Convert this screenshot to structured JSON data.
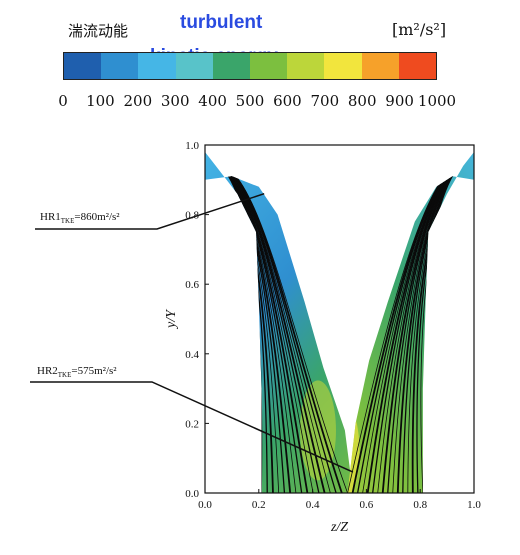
{
  "colorbar": {
    "title_cn": "湍流动能",
    "title_en_line1": "turbulent",
    "title_en_line2": "kinetic energy",
    "unit": "[m²/s²]",
    "ticks": [
      "0",
      "100",
      "200",
      "300",
      "400",
      "500",
      "600",
      "700",
      "800",
      "900",
      "1000"
    ],
    "colors": [
      "#1f5fae",
      "#2f8fd0",
      "#45b6e6",
      "#58c3c9",
      "#3aa56a",
      "#7cbf3f",
      "#bcd63a",
      "#f2e53d",
      "#f6a12a",
      "#ef4b1f"
    ]
  },
  "chart_data": {
    "type": "heatmap",
    "title": "",
    "xlabel": "z/Z",
    "ylabel": "y/Y",
    "xlim": [
      0.0,
      1.0
    ],
    "ylim": [
      0.0,
      1.0
    ],
    "xticks": [
      "0.0",
      "0.2",
      "0.4",
      "0.6",
      "0.8",
      "1.0"
    ],
    "yticks": [
      "0.0",
      "0.2",
      "0.4",
      "0.6",
      "0.8",
      "1.0"
    ],
    "colorbar_range": [
      0,
      1000
    ],
    "annotations": [
      {
        "label": "HR1",
        "subscript": "TKE",
        "value_text": "=860m²/s²",
        "x": 0.22,
        "y": 0.86
      },
      {
        "label": "HR2",
        "subscript": "TKE",
        "value_text": "=575m²/s²",
        "x": 0.55,
        "y": 0.06
      }
    ]
  }
}
